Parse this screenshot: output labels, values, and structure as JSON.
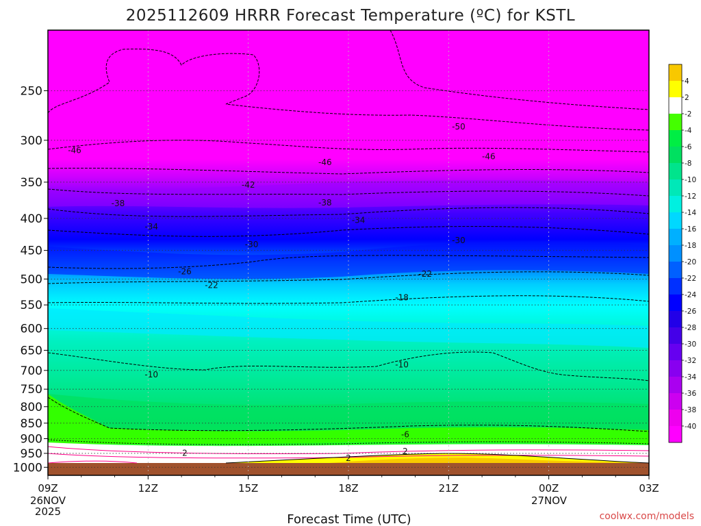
{
  "chart_data": {
    "type": "heatmap",
    "title": "2025112609 HRRR Forecast Temperature (ºC) for KSTL",
    "xlabel": "Forecast Time (UTC)",
    "ylabel": "",
    "x_ticks": [
      "09Z",
      "12Z",
      "15Z",
      "18Z",
      "21Z",
      "00Z",
      "03Z"
    ],
    "x_start_date": [
      "26NOV",
      "2025"
    ],
    "x_mid_date": "27NOV",
    "y_ticks": [
      "250",
      "300",
      "350",
      "400",
      "450",
      "500",
      "550",
      "600",
      "650",
      "700",
      "750",
      "800",
      "850",
      "900",
      "950",
      "1000"
    ],
    "y_range_hpa": [
      1030,
      200
    ],
    "colorbar": {
      "labels": [
        "4",
        "2",
        "-2",
        "-4",
        "-6",
        "-8",
        "-10",
        "-12",
        "-14",
        "-16",
        "-18",
        "-20",
        "-22",
        "-24",
        "-26",
        "-28",
        "-30",
        "-32",
        "-34",
        "-36",
        "-38",
        "-40"
      ],
      "colors": [
        "#f8c800",
        "#ffff00",
        "#ffffff",
        "#44ff00",
        "#00ee44",
        "#00e060",
        "#00e48c",
        "#00e8b8",
        "#00f0e0",
        "#00d8ff",
        "#00b0ff",
        "#0090ff",
        "#0060ff",
        "#0030ff",
        "#0000ff",
        "#2200e8",
        "#4400e8",
        "#6600f0",
        "#8800f0",
        "#aa00f0",
        "#cc00f0",
        "#ee00ee",
        "#ff00ff"
      ]
    },
    "contour_labels": [
      {
        "text": "-46",
        "hour": 0.8,
        "p": 311
      },
      {
        "text": "-46",
        "hour": 8.3,
        "p": 325
      },
      {
        "text": "-46",
        "hour": 13.2,
        "p": 318
      },
      {
        "text": "-50",
        "hour": 12.3,
        "p": 285
      },
      {
        "text": "-42",
        "hour": 6.0,
        "p": 353
      },
      {
        "text": "-38",
        "hour": 2.1,
        "p": 378
      },
      {
        "text": "-38",
        "hour": 8.3,
        "p": 377
      },
      {
        "text": "-34",
        "hour": 3.1,
        "p": 412
      },
      {
        "text": "-34",
        "hour": 9.3,
        "p": 402
      },
      {
        "text": "-30",
        "hour": 6.1,
        "p": 440
      },
      {
        "text": "-30",
        "hour": 12.3,
        "p": 433
      },
      {
        "text": "-26",
        "hour": 4.1,
        "p": 486
      },
      {
        "text": "-22",
        "hour": 4.9,
        "p": 511
      },
      {
        "text": "-22",
        "hour": 11.3,
        "p": 490
      },
      {
        "text": "-18",
        "hour": 10.6,
        "p": 535
      },
      {
        "text": "-10",
        "hour": 3.1,
        "p": 710
      },
      {
        "text": "-10",
        "hour": 10.6,
        "p": 685
      },
      {
        "text": "-6",
        "hour": 10.7,
        "p": 885
      },
      {
        "text": "2",
        "hour": 4.1,
        "p": 948
      },
      {
        "text": "2",
        "hour": 10.7,
        "p": 942
      },
      {
        "text": "2",
        "hour": 9.0,
        "p": 966
      }
    ]
  },
  "credit": "coolwx.com/models"
}
